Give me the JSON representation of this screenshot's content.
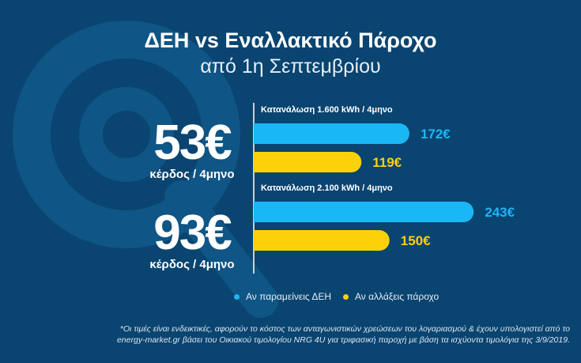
{
  "title": "ΔΕΗ vs Εναλλακτικό Πάροχο",
  "subtitle": "από 1η Σεπτεμβρίου",
  "savings": [
    {
      "amount": "53€",
      "label": "κέρδος / 4μηνο"
    },
    {
      "amount": "93€",
      "label": "κέρδος / 4μηνο"
    }
  ],
  "legend": [
    {
      "label": "Αν παραμείνεις ΔΕΗ",
      "color": "#1ab7f5"
    },
    {
      "label": "Αν αλλάξεις πάροχο",
      "color": "#fbd20a"
    }
  ],
  "footnote": {
    "line1": "*Οι τιμές είναι ενδεικτικές, αφορούν το κόστος των ανταγωνιστικών χρεώσεων του λογαριασμού & έχουν υπολογιστεί από το",
    "line2": "energy-market.gr βάσει του Οικιακού τιμολογίου NRG 4U για τριφασική παροχή με βάση τα ισχύοντα τιμολόγια της 3/9/2019."
  },
  "chart_data": {
    "type": "bar",
    "orientation": "horizontal",
    "groups": [
      {
        "caption": "Κατανάλωση 1.600 kWh / 4μηνο",
        "values": [
          172,
          119
        ],
        "labels": [
          "172€",
          "119€"
        ]
      },
      {
        "caption": "Κατανάλωση 2.100 kWh / 4μηνο",
        "values": [
          243,
          150
        ],
        "labels": [
          "243€",
          "150€"
        ]
      }
    ],
    "series": [
      {
        "name": "Αν παραμείνεις ΔΕΗ",
        "color": "#1ab7f5"
      },
      {
        "name": "Αν αλλάξεις πάροχο",
        "color": "#fbd20a"
      }
    ],
    "title": "ΔΕΗ vs Εναλλακτικό Πάροχο",
    "subtitle": "από 1η Σεπτεμβρίου"
  }
}
